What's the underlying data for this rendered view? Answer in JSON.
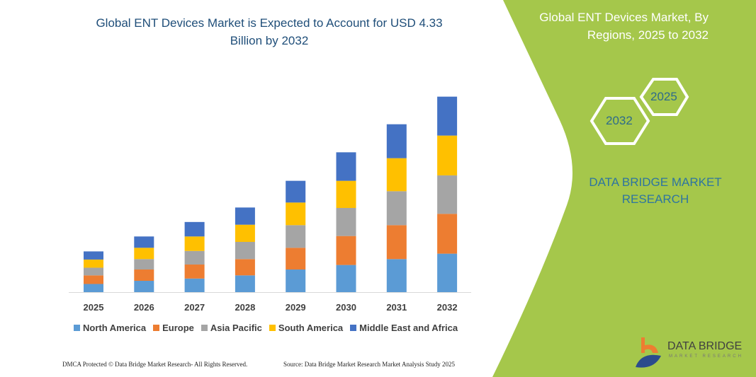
{
  "title": "Global ENT Devices Market is Expected to Account for USD 4.33 Billion by 2032",
  "side_panel": {
    "title": "Global ENT Devices Market, By Regions, 2025 to 2032",
    "hex_years": [
      "2032",
      "2025"
    ],
    "brand": "DATA BRIDGE MARKET RESEARCH",
    "logo_text": "DATA BRIDGE",
    "logo_sub": "MARKET RESEARCH",
    "color": "#a5c74b"
  },
  "footer": {
    "left": "DMCA Protected © Data Bridge Market Research- All Rights Reserved.",
    "right": "Source: Data Bridge Market Research  Market Analysis Study 2025"
  },
  "chart_data": {
    "type": "bar",
    "stacked": true,
    "categories": [
      "2025",
      "2026",
      "2027",
      "2028",
      "2029",
      "2030",
      "2031",
      "2032"
    ],
    "series": [
      {
        "name": "North America",
        "color": "#5b9bd5",
        "values": [
          0.18,
          0.25,
          0.3,
          0.37,
          0.5,
          0.6,
          0.73,
          0.85
        ]
      },
      {
        "name": "Europe",
        "color": "#ed7d31",
        "values": [
          0.19,
          0.25,
          0.31,
          0.36,
          0.48,
          0.64,
          0.75,
          0.88
        ]
      },
      {
        "name": "Asia Pacific",
        "color": "#a5a5a5",
        "values": [
          0.17,
          0.23,
          0.3,
          0.38,
          0.5,
          0.62,
          0.75,
          0.85
        ]
      },
      {
        "name": "South America",
        "color": "#ffc000",
        "values": [
          0.18,
          0.25,
          0.32,
          0.38,
          0.5,
          0.6,
          0.73,
          0.88
        ]
      },
      {
        "name": "Middle East and Africa",
        "color": "#4472c4",
        "values": [
          0.18,
          0.25,
          0.32,
          0.38,
          0.48,
          0.63,
          0.75,
          0.86
        ]
      }
    ],
    "ylim": [
      0,
      4.5
    ],
    "grid": false,
    "legend": "bottom"
  }
}
